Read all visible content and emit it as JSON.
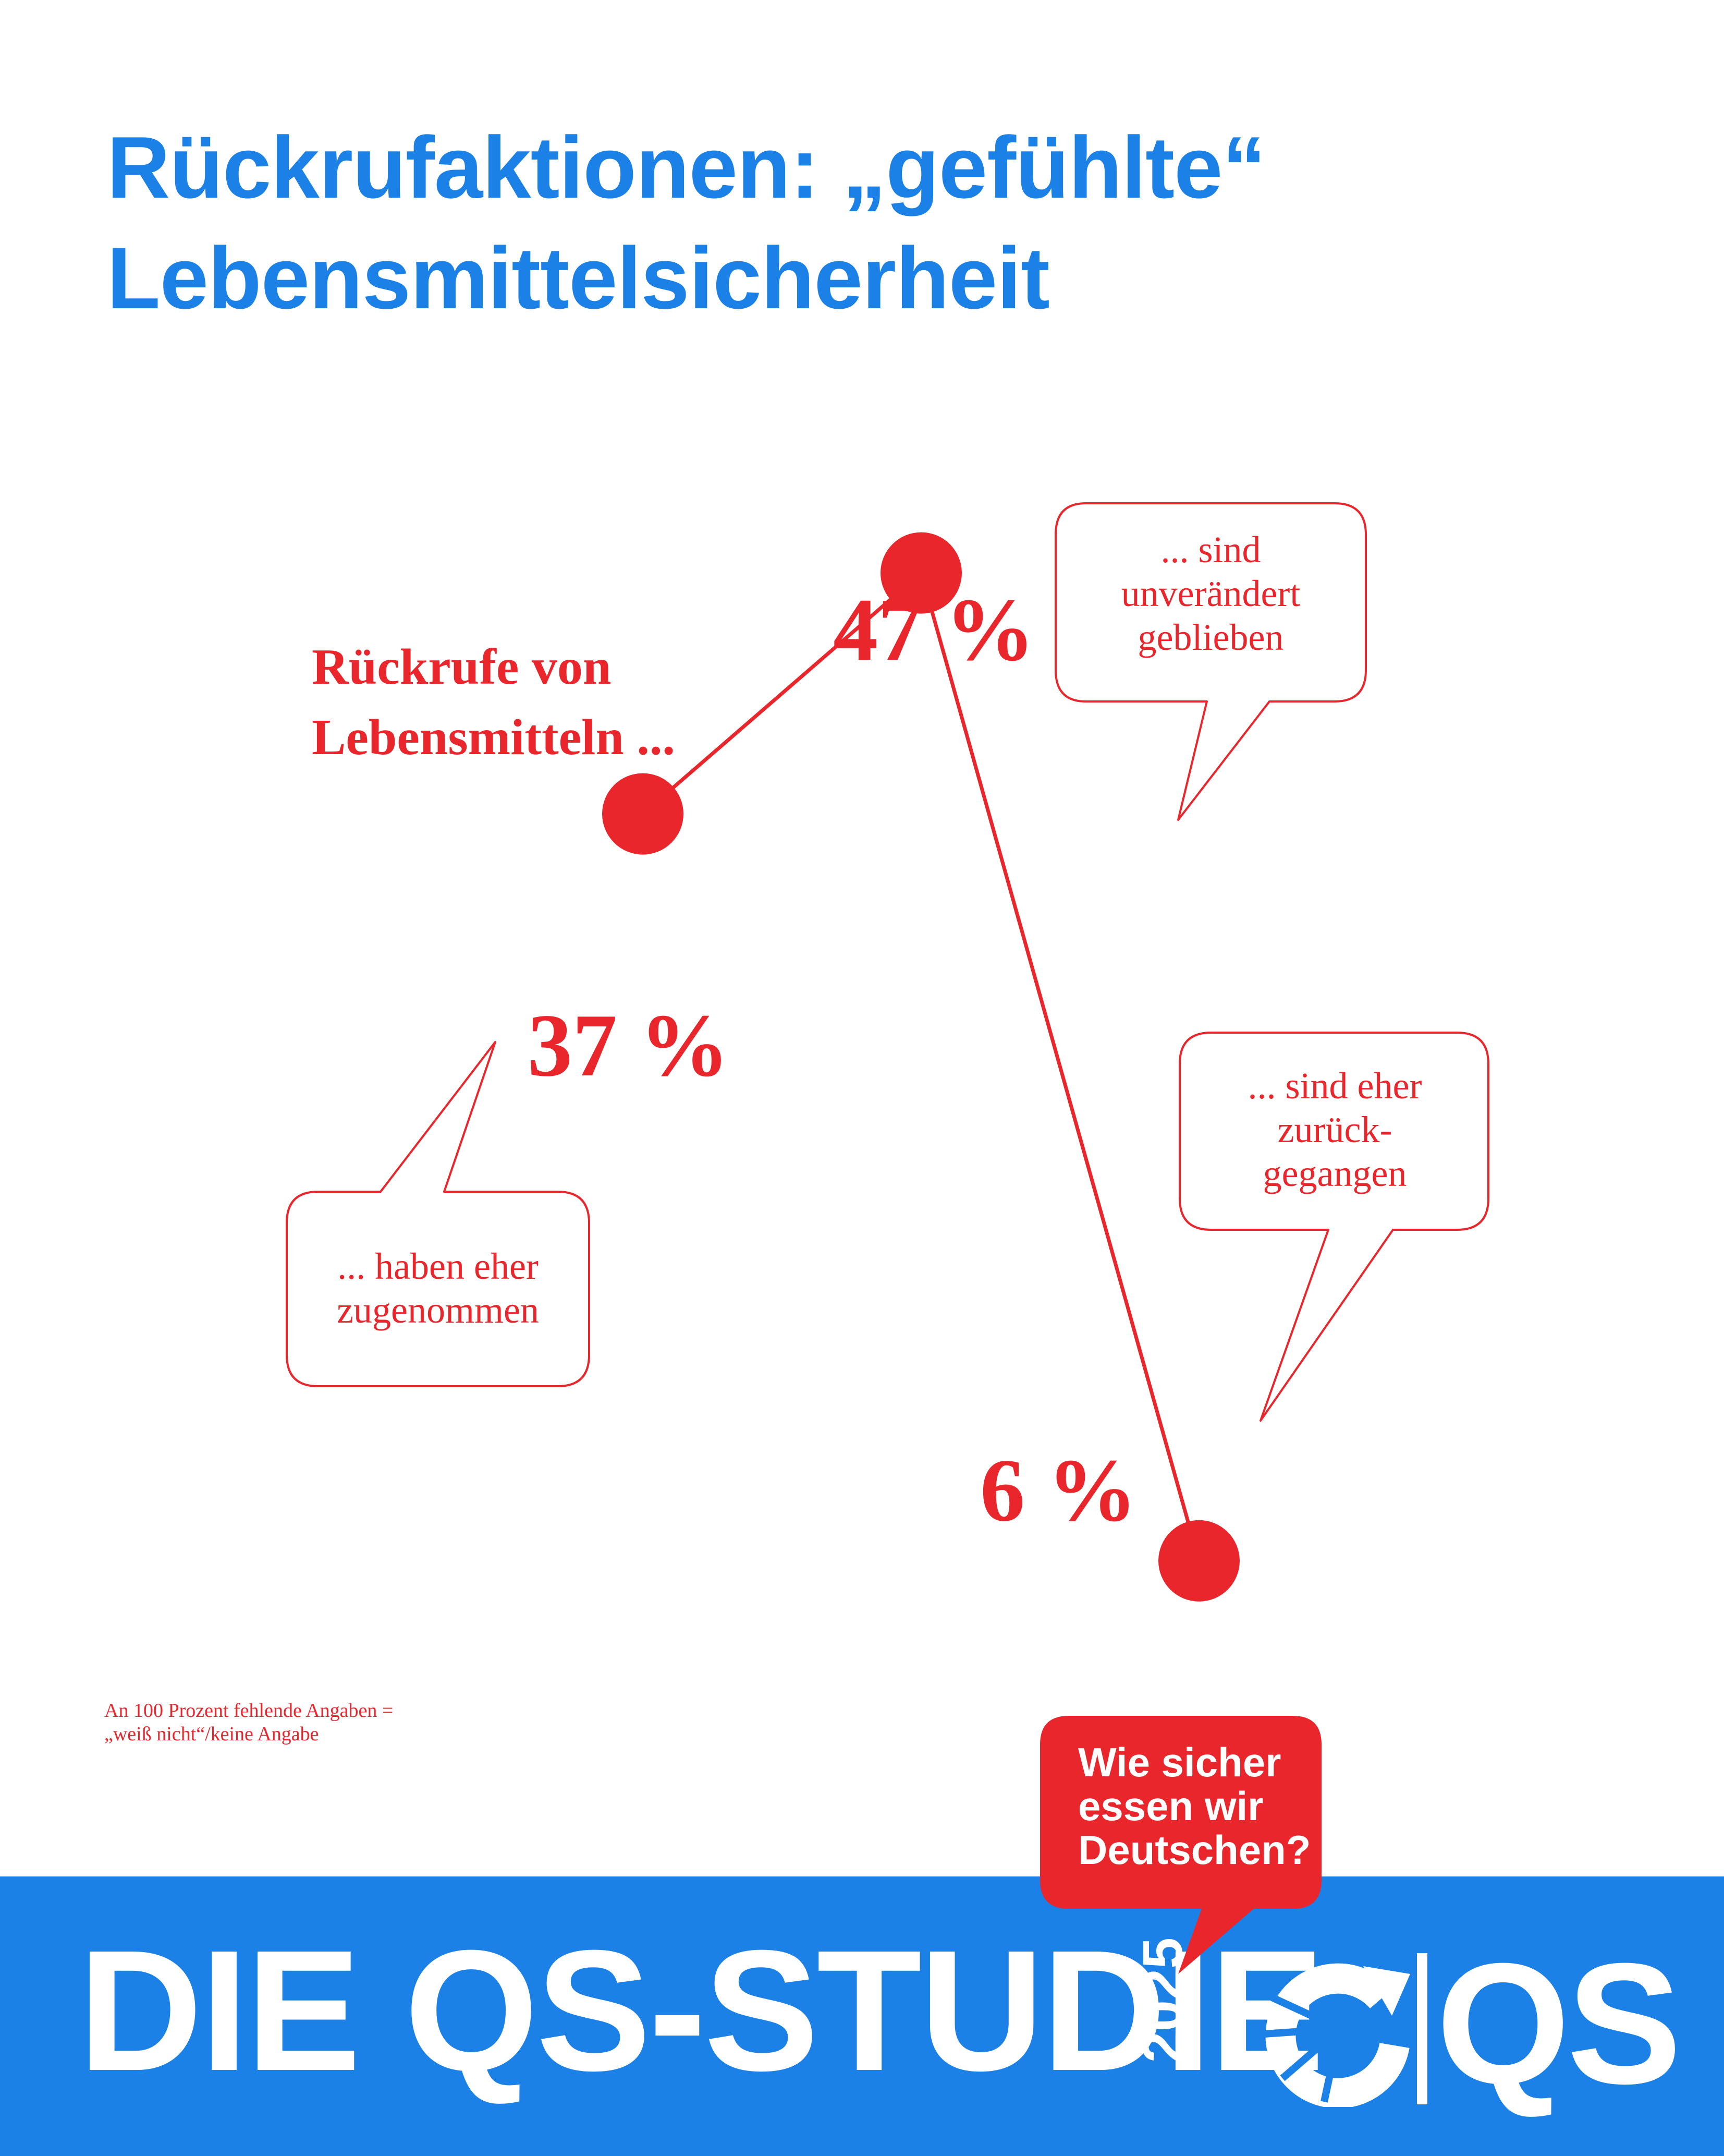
{
  "title": {
    "line1": "Rückrufaktionen: „gefühlte“",
    "line2": "Lebensmittelsicherheit"
  },
  "series_label": {
    "line1": "Rückrufe von",
    "line2": "Lebensmitteln ..."
  },
  "chart_data": {
    "type": "line",
    "categories": [
      "... haben eher zugenommen",
      "... sind unverändert geblieben",
      "... sind eher zurückgegangen"
    ],
    "values": [
      37,
      47,
      6
    ],
    "unit": "%",
    "labels": [
      "37 %",
      "47 %",
      "6 %"
    ],
    "color": "#e9262b",
    "grid": false,
    "axes": false
  },
  "bubbles": {
    "increased": {
      "line1": "... haben eher",
      "line2": "zugenommen"
    },
    "unchanged": {
      "line1": "... sind",
      "line2": "unverändert",
      "line3": "geblieben"
    },
    "decreased": {
      "line1": "... sind eher",
      "line2": "zurück-",
      "line3": "gegangen"
    }
  },
  "footnote": {
    "line1": "An 100 Prozent fehlende Angaben =",
    "line2": "„weiß nicht“/keine Angabe"
  },
  "tagline": {
    "line1": "Wie sicher",
    "line2": "essen wir",
    "line3": "Deutschen?"
  },
  "footer": {
    "brand": "DIE QS-STUDIE",
    "year": "2025",
    "logo_text": "QS"
  },
  "colors": {
    "blue": "#1c81e6",
    "red": "#e9262b",
    "white": "#ffffff"
  }
}
